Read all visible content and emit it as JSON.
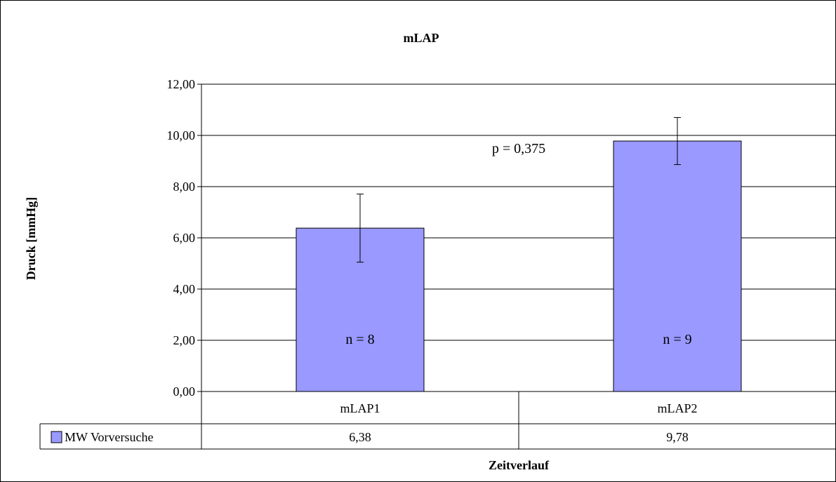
{
  "chart_data": {
    "type": "bar",
    "title": "mLAP",
    "xlabel": "Zeitverlauf",
    "ylabel": "Druck [mmHg]",
    "categories": [
      "mLAP1",
      "mLAP2"
    ],
    "series": [
      {
        "name": "MW Vorversuche",
        "values": [
          6.38,
          9.78
        ],
        "value_labels": [
          "6,38",
          "9,78"
        ],
        "error": [
          1.33,
          0.92
        ],
        "color": "#9999ff"
      }
    ],
    "ylim": [
      0,
      12
    ],
    "yticks": [
      0,
      2,
      4,
      6,
      8,
      10,
      12
    ],
    "ytick_labels": [
      "0,00",
      "2,00",
      "4,00",
      "6,00",
      "8,00",
      "10,00",
      "12,00"
    ],
    "annotations": [
      "n = 8",
      "n = 9",
      "p = 0,375"
    ],
    "grid": true,
    "legend": "data-table"
  }
}
